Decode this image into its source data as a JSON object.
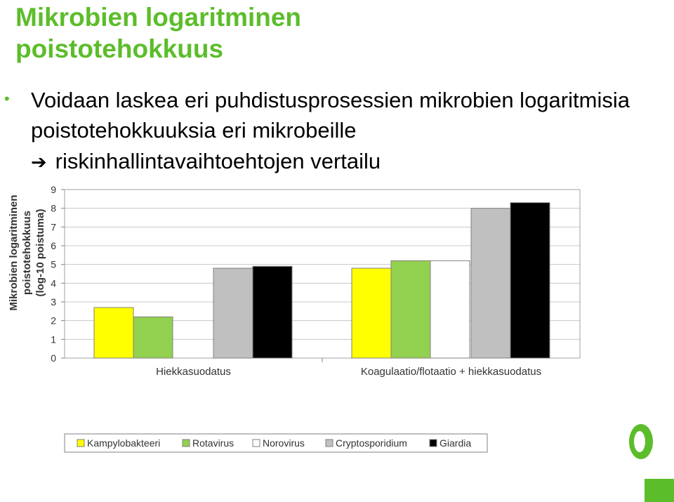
{
  "slide": {
    "title_line1": "Mikrobien logaritminen",
    "title_line2": "poistotehokkuus",
    "bullet_text": "Voidaan laskea eri puhdistusprosessien mikrobien logaritmisia poistotehokkuuksia eri mikrobeille",
    "arrow_text": "riskinhallintavaihtoehtojen vertailu"
  },
  "colors": {
    "accent": "#5cbd2a"
  },
  "icons": {
    "bullet": "bullet-dot-icon",
    "arrow": "right-arrow-icon",
    "logo": "green-circle-logo"
  },
  "chart_data": {
    "type": "bar",
    "categories": [
      "Hiekkasuodatus",
      "Koagulaatio/flotaatio + hiekkasuodatus"
    ],
    "series": [
      {
        "name": "Kampylobakteeri",
        "color": "#ffff00",
        "values": [
          2.7,
          4.8
        ]
      },
      {
        "name": "Rotavirus",
        "color": "#92d050",
        "values": [
          2.2,
          5.2
        ]
      },
      {
        "name": "Norovirus",
        "color": "#ffffff",
        "values": [
          0,
          5.2
        ]
      },
      {
        "name": "Cryptosporidium",
        "color": "#c0c0c0",
        "values": [
          4.8,
          8.0
        ]
      },
      {
        "name": "Giardia",
        "color": "#000000",
        "values": [
          4.9,
          8.3
        ]
      }
    ],
    "ylabel": "Mikrobien logaritminen poistotehokkuus (log-10 poistuma)",
    "ylim": [
      0,
      9
    ],
    "yticks": [
      "0",
      "1",
      "2",
      "3",
      "4",
      "5",
      "6",
      "7",
      "8",
      "9"
    ],
    "grid": true,
    "legend_position": "bottom"
  }
}
